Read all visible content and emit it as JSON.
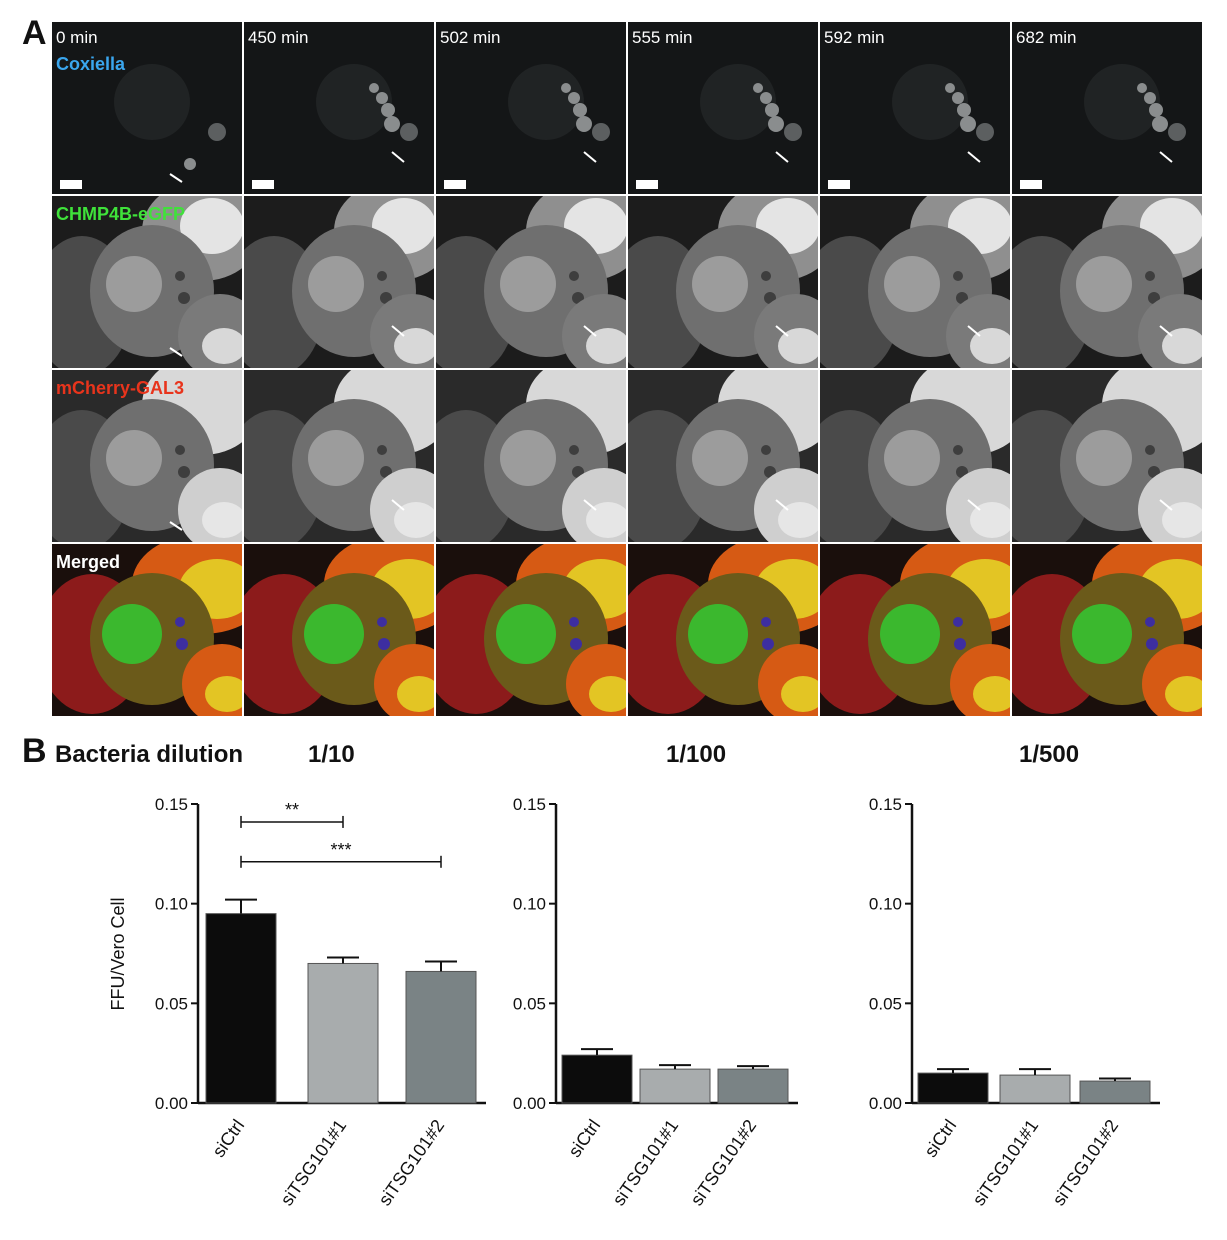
{
  "panel_a": {
    "letter": "A",
    "time_points": [
      "0 min",
      "450 min",
      "502 min",
      "555 min",
      "592 min",
      "682 min"
    ],
    "channels": [
      {
        "label": "Coxiella",
        "color": "#3aa6ee",
        "kind": "coxiella"
      },
      {
        "label": "CHMP4B-eGFP",
        "color": "#3fe23a",
        "kind": "gray"
      },
      {
        "label": "mCherry-GAL3",
        "color": "#e8341c",
        "kind": "gray2"
      },
      {
        "label": "Merged",
        "color": "#ffffff",
        "kind": "merged"
      }
    ]
  },
  "panel_b": {
    "letter": "B",
    "title": "Bacteria dilution"
  },
  "chart_data": [
    {
      "type": "bar",
      "title": "1/10",
      "ylabel": "FFU/Vero Cell",
      "ylim": [
        0,
        0.15
      ],
      "yticks": [
        "0.00",
        "0.05",
        "0.10",
        "0.15"
      ],
      "categories": [
        "siCtrl",
        "siTSG101#1",
        "siTSG101#2"
      ],
      "values": [
        0.095,
        0.07,
        0.066
      ],
      "errors": [
        0.007,
        0.003,
        0.005
      ],
      "bar_colors": [
        "#0c0c0c",
        "#a8acad",
        "#7a8385"
      ],
      "annotations": [
        {
          "text": "**",
          "from": 0,
          "to": 1,
          "y": 0.141
        },
        {
          "text": "***",
          "from": 0,
          "to": 2,
          "y": 0.121
        }
      ]
    },
    {
      "type": "bar",
      "title": "1/100",
      "ylim": [
        0,
        0.15
      ],
      "yticks": [
        "0.00",
        "0.05",
        "0.10",
        "0.15"
      ],
      "categories": [
        "siCtrl",
        "siTSG101#1",
        "siTSG101#2"
      ],
      "values": [
        0.024,
        0.017,
        0.017
      ],
      "errors": [
        0.003,
        0.002,
        0.0015
      ],
      "bar_colors": [
        "#0c0c0c",
        "#a8acad",
        "#7a8385"
      ],
      "annotations": []
    },
    {
      "type": "bar",
      "title": "1/500",
      "ylim": [
        0,
        0.15
      ],
      "yticks": [
        "0.00",
        "0.05",
        "0.10",
        "0.15"
      ],
      "categories": [
        "siCtrl",
        "siTSG101#1",
        "siTSG101#2"
      ],
      "values": [
        0.015,
        0.014,
        0.011
      ],
      "errors": [
        0.002,
        0.003,
        0.0013
      ],
      "bar_colors": [
        "#0c0c0c",
        "#a8acad",
        "#7a8385"
      ],
      "annotations": []
    }
  ]
}
